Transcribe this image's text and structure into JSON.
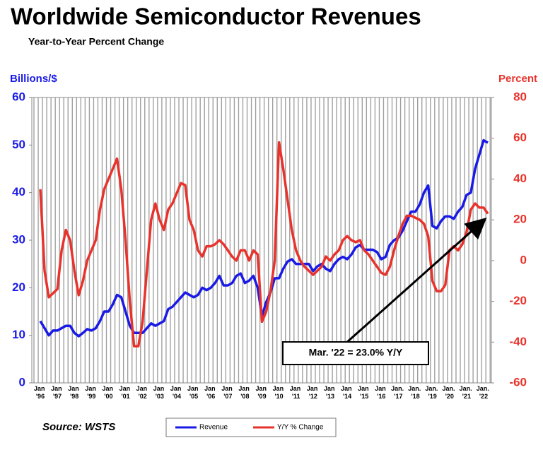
{
  "chart_data": {
    "type": "line",
    "title": "Worldwide Semiconductor Revenues",
    "subtitle": "Year-to-Year Percent Change",
    "y_label": "Billions/$",
    "y2_label": "Percent",
    "source": "Source: WSTS",
    "annotation": "Mar. '22 = 23.0% Y/Y",
    "legend": "bottom",
    "categories": [
      "Jan '96",
      null,
      null,
      null,
      "Jan '97",
      null,
      null,
      null,
      "Jan '98",
      null,
      null,
      null,
      "Jan '99",
      null,
      null,
      null,
      "Jan '00",
      null,
      null,
      null,
      "Jan '01",
      null,
      null,
      null,
      "Jan '02",
      null,
      null,
      null,
      "Jan '03",
      null,
      null,
      null,
      "Jan '04",
      null,
      null,
      null,
      "Jan '05",
      null,
      null,
      null,
      "Jan '06",
      null,
      null,
      null,
      "Jan '07",
      null,
      null,
      null,
      "Jan '08",
      null,
      null,
      null,
      "Jan '09",
      null,
      null,
      null,
      "Jan '10",
      null,
      null,
      null,
      "Jan '11",
      null,
      null,
      null,
      "Jan '12",
      null,
      null,
      null,
      "Jan '13",
      null,
      null,
      null,
      "Jan '14",
      null,
      null,
      null,
      "Jan '15",
      null,
      null,
      null,
      "Jan '16",
      null,
      null,
      null,
      "Jan. '17",
      null,
      null,
      null,
      "Jan. '18",
      null,
      null,
      null,
      "Jan. '19",
      null,
      null,
      null,
      "Jan. '20",
      null,
      null,
      null,
      "Jan. '21",
      null,
      null,
      null,
      "Jan. '22",
      null
    ],
    "series": [
      {
        "name": "Revenue",
        "color": "#1a1ae6",
        "axis": "y",
        "values": [
          13,
          11.5,
          10,
          11,
          11,
          11.5,
          12,
          12,
          10.5,
          9.8,
          10.5,
          11.3,
          11,
          11.5,
          13,
          15,
          15,
          16.5,
          18.5,
          18,
          15,
          12,
          10.5,
          10.5,
          10.5,
          11.5,
          12.5,
          12,
          12.5,
          13,
          15.5,
          16,
          17,
          18,
          19,
          18.5,
          18,
          18.5,
          20,
          19.5,
          20,
          21,
          22.5,
          20.5,
          20.5,
          21,
          22.5,
          23,
          21,
          21.5,
          22.5,
          20,
          14,
          17,
          19,
          22,
          22,
          24,
          25.5,
          26,
          25,
          25,
          25,
          25,
          23.5,
          24.5,
          25,
          24,
          23.5,
          25,
          26,
          26.5,
          26,
          27,
          28.5,
          29,
          28,
          28,
          28,
          27.5,
          26,
          26.5,
          29,
          30,
          30.5,
          32,
          34,
          36,
          36,
          37.5,
          40,
          41.5,
          33,
          32.5,
          34,
          35,
          35,
          34.5,
          36,
          37,
          39.5,
          40,
          45,
          48,
          51,
          50.5
        ]
      },
      {
        "name": "Y/Y % Change",
        "color": "#e8332c",
        "axis": "y2",
        "values": [
          35,
          -5,
          -18,
          -16,
          -14,
          5,
          15,
          10,
          -5,
          -17,
          -10,
          0,
          5,
          10,
          25,
          35,
          40,
          45,
          50,
          35,
          10,
          -20,
          -42,
          -42,
          -30,
          -5,
          20,
          28,
          20,
          15,
          25,
          28,
          33,
          38,
          37,
          20,
          15,
          5,
          2,
          7,
          7,
          8,
          10,
          8,
          5,
          2,
          0,
          5,
          5,
          0,
          5,
          3,
          -30,
          -25,
          -15,
          0,
          58,
          45,
          30,
          15,
          5,
          0,
          -3,
          -5,
          -7,
          -5,
          -3,
          2,
          0,
          3,
          5,
          10,
          12,
          10,
          9,
          10,
          5,
          3,
          0,
          -3,
          -6,
          -7,
          -3,
          5,
          12,
          18,
          22,
          22,
          21,
          20,
          18,
          12,
          -10,
          -15,
          -15,
          -12,
          5,
          7,
          5,
          8,
          14,
          25,
          28,
          26,
          26,
          23
        ]
      }
    ],
    "ylim": [
      0,
      60
    ],
    "yticks": [
      0,
      10,
      20,
      30,
      40,
      50,
      60
    ],
    "y2lim": [
      -60,
      80
    ],
    "y2ticks": [
      -60,
      -40,
      -20,
      0,
      20,
      40,
      60,
      80
    ]
  }
}
